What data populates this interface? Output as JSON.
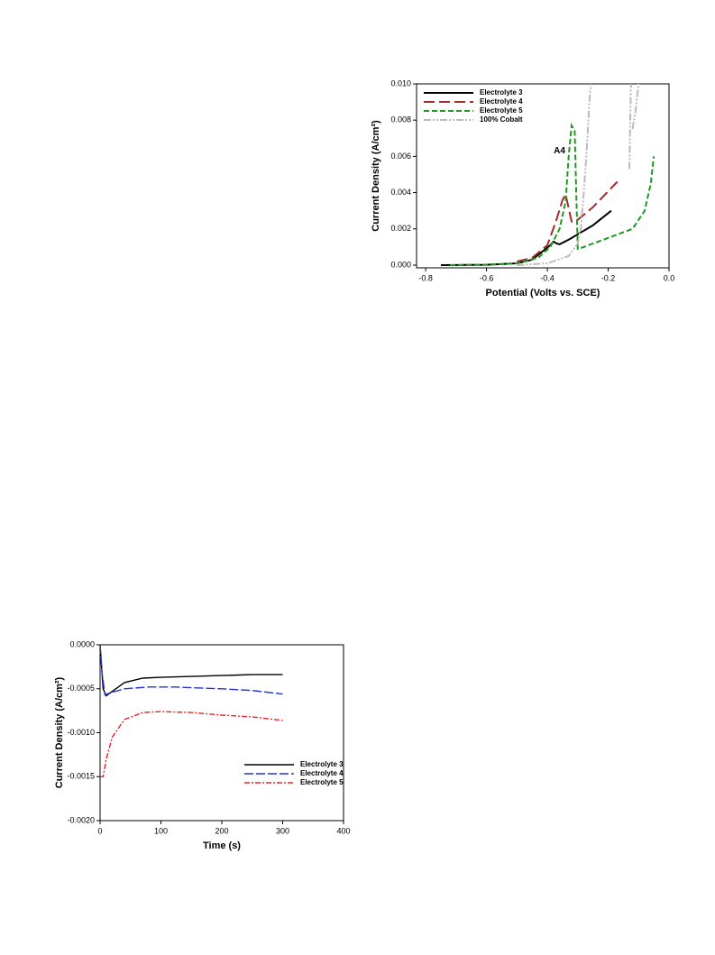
{
  "chart_data": [
    {
      "type": "line",
      "x_label": "Potential (Volts vs. SCE)",
      "y_label": "Current Density (A/cm²)",
      "annotation": "A4",
      "xlim": [
        -0.83,
        0.0
      ],
      "ylim": [
        -0.00015,
        0.01
      ],
      "xticks": [
        -0.8,
        -0.6,
        -0.4,
        -0.2,
        {
          "value": 0,
          "label": "0.0"
        }
      ],
      "yticks": [
        {
          "value": 0,
          "label": "0.000"
        },
        {
          "value": 0.002,
          "label": "0.002"
        },
        {
          "value": 0.004,
          "label": "0.004"
        },
        {
          "value": 0.006,
          "label": "0.006"
        },
        {
          "value": 0.008,
          "label": "0.008"
        },
        {
          "value": 0.01,
          "label": "0.010"
        }
      ],
      "legend": "upper-left",
      "series": [
        {
          "name": "Electrolyte 3",
          "color": "#000000",
          "x": [
            -0.75,
            -0.6,
            -0.5,
            -0.45,
            -0.42,
            -0.39,
            -0.38,
            -0.37,
            -0.36,
            -0.33,
            -0.3,
            -0.25,
            -0.19
          ],
          "values": [
            0,
            2e-05,
            0.0001,
            0.0003,
            0.0007,
            0.0011,
            0.0013,
            0.0012,
            0.00115,
            0.0014,
            0.0017,
            0.0022,
            0.003
          ]
        },
        {
          "name": "Electrolyte 4",
          "color": "#a52a2a",
          "x": [
            -0.5,
            -0.45,
            -0.4,
            -0.37,
            -0.35,
            -0.34,
            -0.32,
            -0.3,
            -0.25,
            -0.17
          ],
          "values": [
            0.0002,
            0.0004,
            0.0011,
            0.0025,
            0.0036,
            0.0039,
            0.0024,
            0.0025,
            0.0032,
            0.0046
          ]
        },
        {
          "name": "Electrolyte 5",
          "color": "#1f9a1f",
          "x": [
            -0.72,
            -0.6,
            -0.5,
            -0.43,
            -0.39,
            -0.36,
            -0.34,
            -0.33,
            -0.32,
            -0.31,
            -0.305,
            -0.3,
            -0.28,
            -0.2,
            -0.12,
            -0.08,
            -0.06,
            -0.05
          ],
          "values": [
            0,
            3e-05,
            0.0001,
            0.0004,
            0.001,
            0.002,
            0.0035,
            0.006,
            0.0077,
            0.0074,
            0.004,
            0.0009,
            0.001,
            0.0015,
            0.002,
            0.003,
            0.0045,
            0.006
          ]
        },
        {
          "name": "100% Cobalt",
          "color": "#bbbbbb",
          "x": [
            -0.5,
            -0.4,
            -0.33,
            -0.3,
            -0.29,
            -0.28,
            -0.27,
            -0.26,
            -0.255,
            null,
            -0.13,
            -0.128,
            -0.125,
            null,
            -0.12,
            -0.11,
            -0.1
          ],
          "values": [
            0,
            0.0001,
            0.0005,
            0.0012,
            0.002,
            0.004,
            0.0065,
            0.0095,
            0.01,
            null,
            0.0053,
            0.0075,
            0.01,
            null,
            0.0075,
            0.0085,
            0.01
          ]
        }
      ]
    },
    {
      "type": "line",
      "x_label": "Time (s)",
      "y_label": "Current Density (A/cm²)",
      "xlim": [
        0,
        400
      ],
      "ylim": [
        -0.002,
        0
      ],
      "xticks": [
        0,
        100,
        200,
        300,
        400
      ],
      "yticks": [
        {
          "value": -0.002,
          "label": "-0.0020"
        },
        {
          "value": -0.0015,
          "label": "-0.0015"
        },
        {
          "value": -0.001,
          "label": "-0.0010"
        },
        {
          "value": -0.0005,
          "label": "-0.0005"
        },
        {
          "value": 0,
          "label": "0.0000"
        }
      ],
      "legend": "lower-right",
      "series": [
        {
          "name": "Electrolyte 3",
          "color": "#000000",
          "x": [
            0,
            2,
            5,
            10,
            20,
            40,
            70,
            100,
            150,
            200,
            250,
            300
          ],
          "values": [
            0,
            -0.0002,
            -0.0005,
            -0.00058,
            -0.00053,
            -0.00043,
            -0.00038,
            -0.00037,
            -0.00036,
            -0.00035,
            -0.00034,
            -0.00034
          ]
        },
        {
          "name": "Electrolyte 4",
          "color": "#2233dd",
          "x": [
            0,
            3,
            8,
            15,
            40,
            80,
            120,
            200,
            250,
            300
          ],
          "values": [
            0,
            -0.0003,
            -0.00057,
            -0.00055,
            -0.0005,
            -0.00048,
            -0.00048,
            -0.0005,
            -0.00052,
            -0.00056
          ]
        },
        {
          "name": "Electrolyte 5",
          "color": "#ee2222",
          "x": [
            0,
            5,
            10,
            20,
            40,
            70,
            100,
            150,
            200,
            250,
            300
          ],
          "values": [
            -0.0015,
            -0.0015,
            -0.0013,
            -0.00105,
            -0.00085,
            -0.00077,
            -0.00076,
            -0.00077,
            -0.0008,
            -0.00082,
            -0.00086
          ]
        }
      ]
    }
  ]
}
